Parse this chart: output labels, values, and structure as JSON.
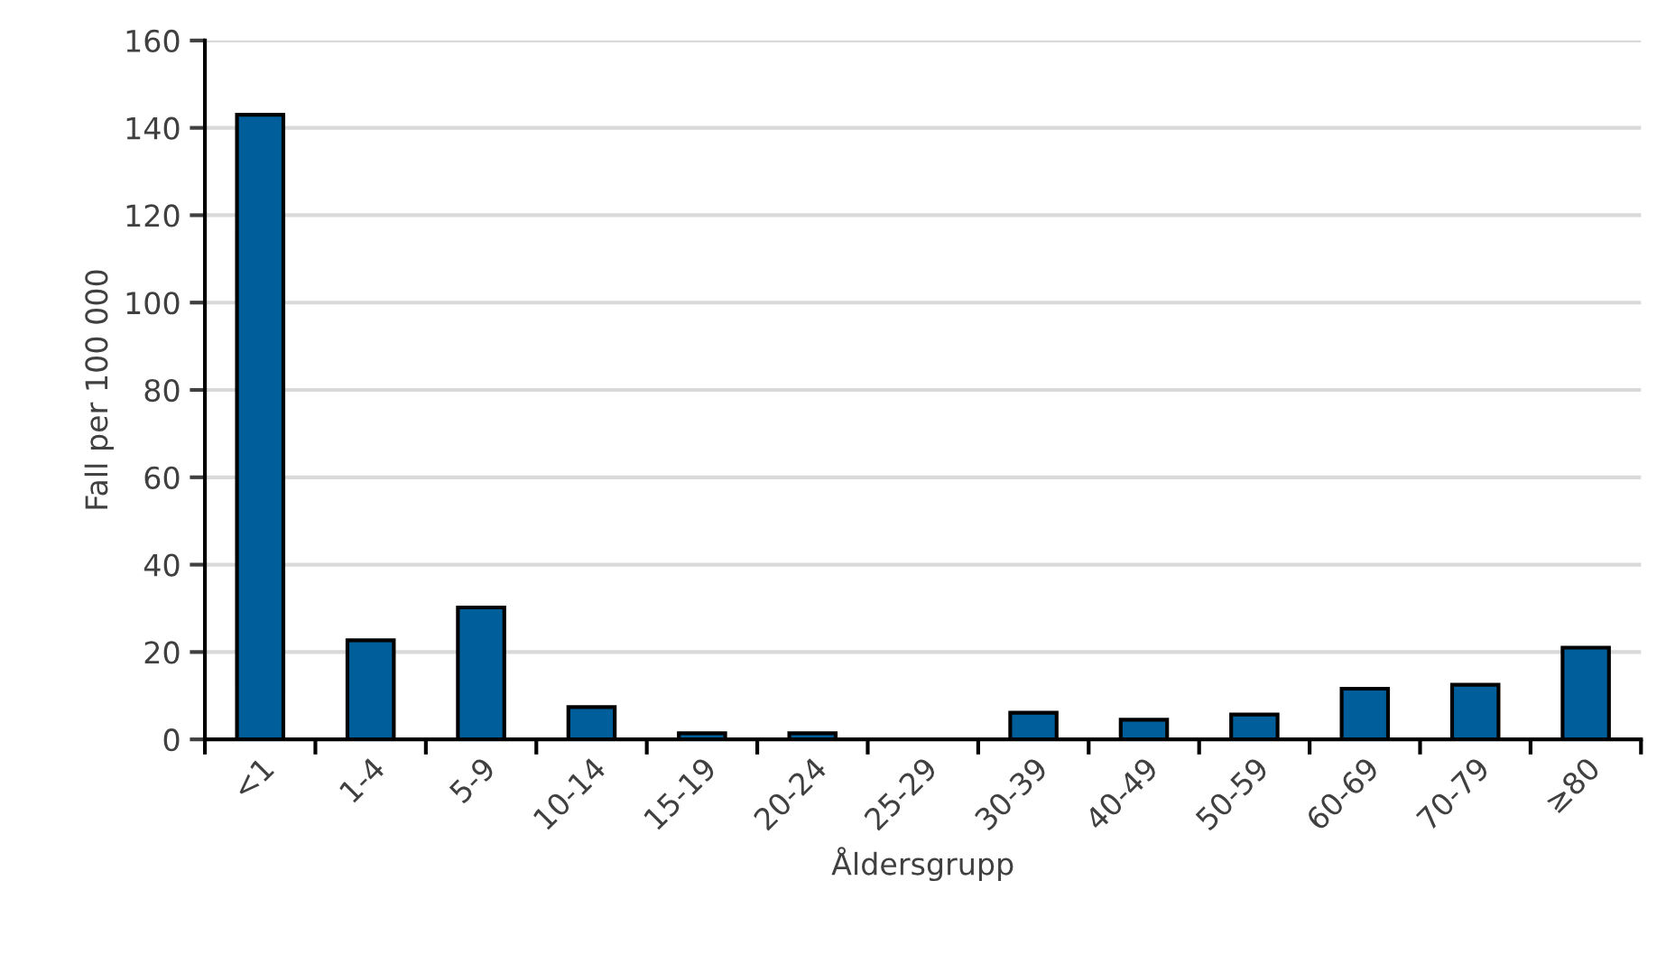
{
  "chart_data": {
    "type": "bar",
    "xlabel": "Åldersgrupp",
    "ylabel": "Fall per 100 000",
    "categories": [
      "<1",
      "1-4",
      "5-9",
      "10-14",
      "15-19",
      "20-24",
      "25-29",
      "30-39",
      "40-49",
      "50-59",
      "60-69",
      "70-79",
      "≥80"
    ],
    "values": [
      143,
      22.7,
      30.2,
      7.4,
      1.4,
      1.4,
      0,
      6.1,
      4.5,
      5.7,
      11.6,
      12.5,
      21
    ],
    "color": "#005f9a",
    "ylim": [
      0,
      160
    ],
    "yticks": [
      0,
      20,
      40,
      60,
      80,
      100,
      120,
      140,
      160
    ],
    "grid": "y"
  }
}
